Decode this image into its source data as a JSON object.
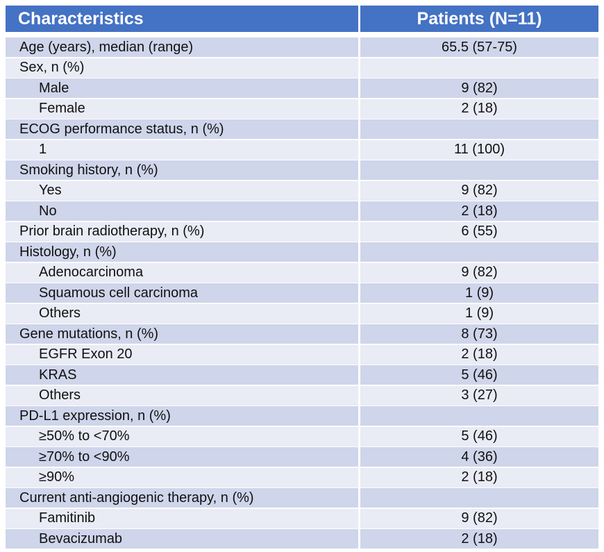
{
  "table": {
    "header": [
      "Characteristics",
      "Patients (N=11)"
    ],
    "rows": [
      {
        "label": "Age (years), median (range)",
        "value": "65.5 (57-75)",
        "level": 0
      },
      {
        "label": "Sex, n (%)",
        "level": 0
      },
      {
        "label": "Male",
        "value": "9 (82)",
        "level": 1
      },
      {
        "label": "Female",
        "value": "2 (18)",
        "level": 1
      },
      {
        "label": "ECOG performance status, n (%)",
        "level": 0
      },
      {
        "label": "1",
        "value": "11 (100)",
        "level": 1
      },
      {
        "label": "Smoking history, n (%)",
        "level": 0
      },
      {
        "label": "Yes",
        "value": "9 (82)",
        "level": 1
      },
      {
        "label": "No",
        "value": "2 (18)",
        "level": 1
      },
      {
        "label": "Prior brain radiotherapy, n (%)",
        "value": "6 (55)",
        "level": 0
      },
      {
        "label": "Histology, n (%)",
        "level": 0
      },
      {
        "label": "Adenocarcinoma",
        "value": "9 (82)",
        "level": 1
      },
      {
        "label": "Squamous cell carcinoma",
        "value": "1 (9)",
        "level": 1
      },
      {
        "label": "Others",
        "value": "1 (9)",
        "level": 1
      },
      {
        "label": "Gene mutations, n (%)",
        "value": "8 (73)",
        "level": 0
      },
      {
        "label": "EGFR Exon 20",
        "value": "2 (18)",
        "level": 1
      },
      {
        "label": "KRAS",
        "value": "5 (46)",
        "level": 1
      },
      {
        "label": "Others",
        "value": "3 (27)",
        "level": 1
      },
      {
        "label": "PD-L1 expression, n (%)",
        "level": 0
      },
      {
        "label": "≥50% to <70%",
        "value": "5 (46)",
        "level": 1
      },
      {
        "label": "≥70% to <90%",
        "value": "4 (36)",
        "level": 1
      },
      {
        "label": "≥90%",
        "value": "2 (18)",
        "level": 1
      },
      {
        "label": "Current anti-angiogenic therapy, n (%)",
        "level": 0
      },
      {
        "label": "Famitinib",
        "value": "9 (82)",
        "level": 1
      },
      {
        "label": "Bevacizumab",
        "value": "2 (18)",
        "level": 1
      }
    ]
  }
}
